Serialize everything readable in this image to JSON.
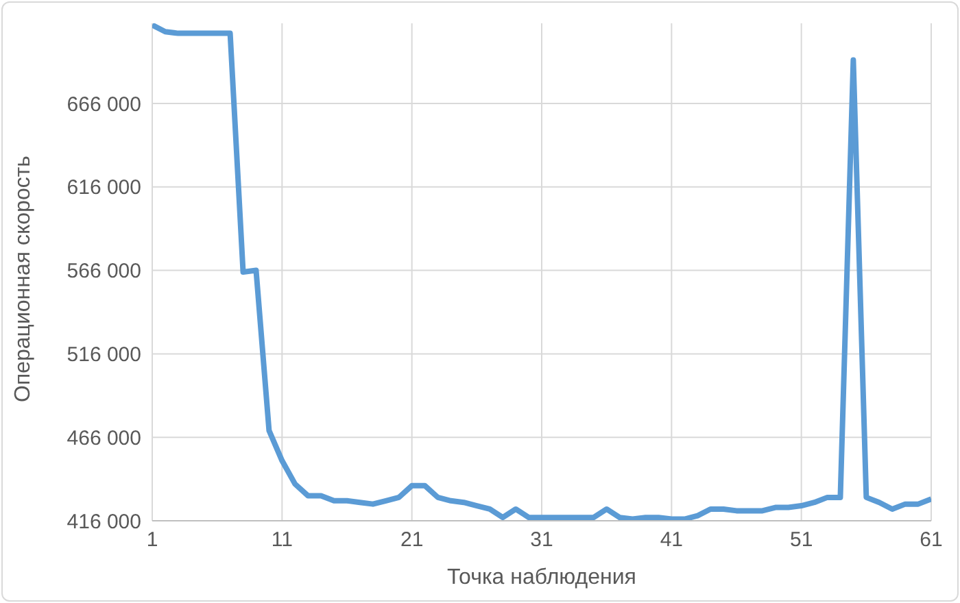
{
  "chart_data": {
    "type": "line",
    "xlabel": "Точка наблюдения",
    "ylabel": "Операционная скорость",
    "x": [
      1,
      2,
      3,
      4,
      5,
      6,
      7,
      8,
      9,
      10,
      11,
      12,
      13,
      14,
      15,
      16,
      17,
      18,
      19,
      20,
      21,
      22,
      23,
      24,
      25,
      26,
      27,
      28,
      29,
      30,
      31,
      32,
      33,
      34,
      35,
      36,
      37,
      38,
      39,
      40,
      41,
      42,
      43,
      44,
      45,
      46,
      47,
      48,
      49,
      50,
      51,
      52,
      53,
      54,
      55,
      56,
      57,
      58,
      59,
      60,
      61
    ],
    "series": [
      {
        "color": "#5b9bd5",
        "values": [
          713000,
          709000,
          708000,
          708000,
          708000,
          708000,
          708000,
          565000,
          566000,
          470000,
          452000,
          438000,
          431000,
          431000,
          428000,
          428000,
          427000,
          426000,
          428000,
          430000,
          437000,
          437000,
          430000,
          428000,
          427000,
          425000,
          423000,
          418000,
          423000,
          418000,
          418000,
          418000,
          418000,
          418000,
          418000,
          423000,
          418000,
          417000,
          418000,
          418000,
          417000,
          417000,
          419000,
          423000,
          423000,
          422000,
          422000,
          422000,
          424000,
          424000,
          425000,
          427000,
          430000,
          430000,
          692000,
          430000,
          427000,
          423000,
          426000,
          426000,
          429000
        ]
      }
    ],
    "xlim": [
      1,
      61
    ],
    "xticks": [
      1,
      11,
      21,
      31,
      41,
      51,
      61
    ],
    "ylim": [
      416000,
      714000
    ],
    "yticks": [
      {
        "value": 416000,
        "label": "416 000"
      },
      {
        "value": 466000,
        "label": "466 000"
      },
      {
        "value": 516000,
        "label": "516 000"
      },
      {
        "value": 566000,
        "label": "566 000"
      },
      {
        "value": 616000,
        "label": "616 000"
      },
      {
        "value": 666000,
        "label": "666 000"
      }
    ],
    "grid": true,
    "marker": "none",
    "line_style": "solid",
    "legend": false
  }
}
